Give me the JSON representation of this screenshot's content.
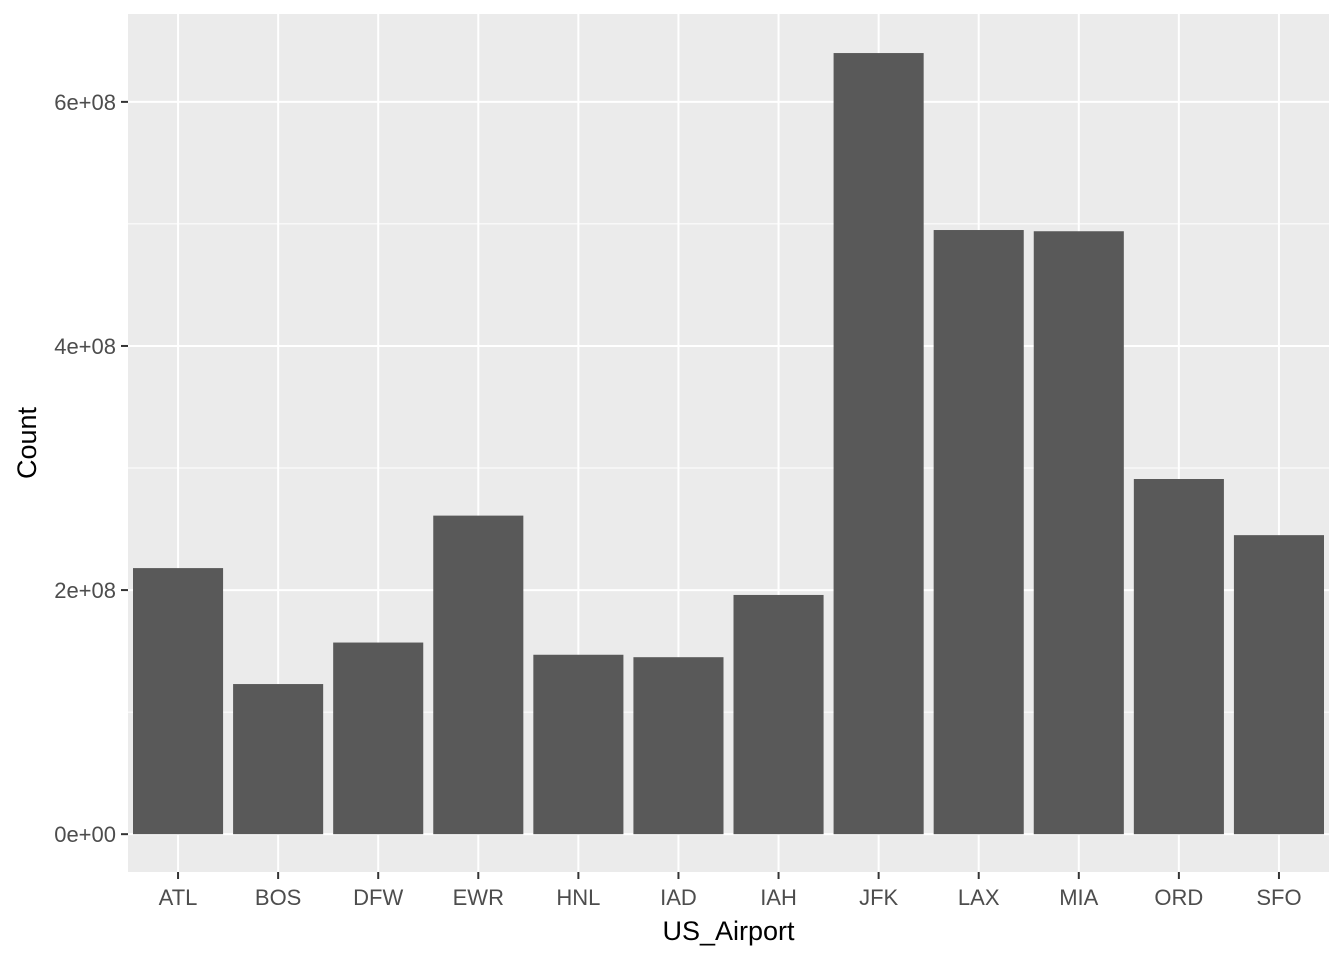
{
  "chart_data": {
    "type": "bar",
    "title": "",
    "xlabel": "US_Airport",
    "ylabel": "Count",
    "categories": [
      "ATL",
      "BOS",
      "DFW",
      "EWR",
      "HNL",
      "IAD",
      "IAH",
      "JFK",
      "LAX",
      "MIA",
      "ORD",
      "SFO"
    ],
    "values": [
      218000000,
      123000000,
      157000000,
      261000000,
      147000000,
      145000000,
      196000000,
      640000000,
      495000000,
      494000000,
      291000000,
      245000000
    ],
    "ylim": [
      -31000000,
      672000000
    ],
    "yticks": [
      0,
      200000000,
      400000000,
      600000000
    ],
    "ytick_labels": [
      "0e+00",
      "2e+08",
      "4e+08",
      "6e+08"
    ],
    "grid": true,
    "legend": "none",
    "colors": {
      "bar": "#595959",
      "panel": "#ebebeb",
      "grid_major": "#ffffff",
      "tick_text": "#4d4d4d",
      "tick_mark": "#333333"
    }
  }
}
